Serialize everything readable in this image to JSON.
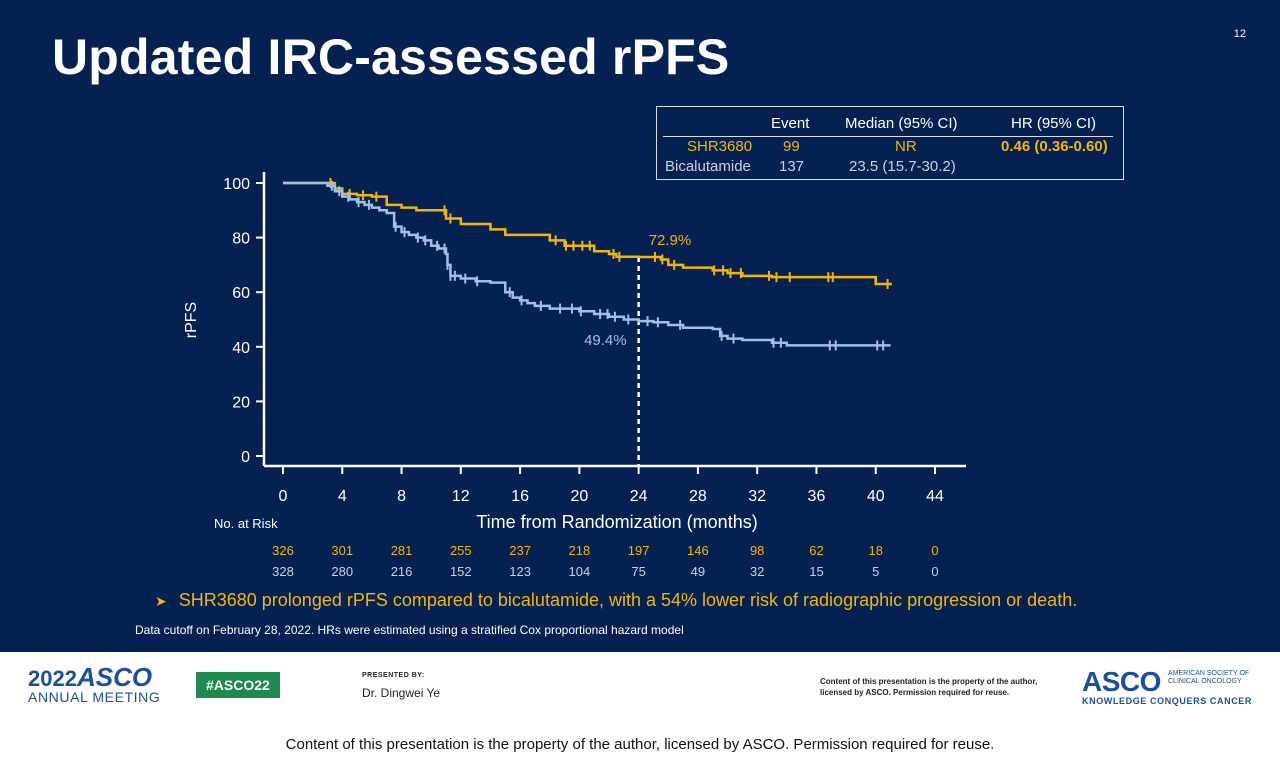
{
  "slide": {
    "number": "12",
    "title": "Updated IRC-assessed rPFS",
    "bullet": "SHR3680 prolonged rPFS compared to bicalutamide, with a 54% lower risk of radiographic progression or death.",
    "footnote": "Data cutoff on February 28, 2022. HRs were estimated using a stratified Cox proportional hazard model"
  },
  "legend_table": {
    "headers": [
      "Event",
      "Median (95% CI)",
      "HR (95% CI)"
    ],
    "rows": [
      {
        "arm": "SHR3680",
        "event": "99",
        "median": "NR",
        "hr": "0.46 (0.36-0.60)"
      },
      {
        "arm": "Bicalutamide",
        "event": "137",
        "median": "23.5 (15.7-30.2)",
        "hr": ""
      }
    ]
  },
  "colors": {
    "background": "#052152",
    "shr3680": "#f2b705",
    "bicalutamide": "#9cc2e5",
    "axis": "#ffffff"
  },
  "chart_data": {
    "type": "line",
    "subtype": "kaplan-meier",
    "xlabel": "Time from Randomization (months)",
    "ylabel": "rPFS",
    "xlim": [
      0,
      44
    ],
    "ylim": [
      0,
      100
    ],
    "x_ticks": [
      0,
      4,
      8,
      12,
      16,
      20,
      24,
      28,
      32,
      36,
      40,
      44
    ],
    "y_ticks": [
      0,
      20,
      40,
      60,
      80,
      100
    ],
    "reference_line": {
      "x": 24
    },
    "annotations": [
      {
        "label": "72.9%",
        "x": 24,
        "y": 72.9,
        "series": "SHR3680"
      },
      {
        "label": "49.4%",
        "x": 24,
        "y": 49.4,
        "series": "Bicalutamide"
      }
    ],
    "series": [
      {
        "name": "SHR3680",
        "color": "#f2b705",
        "steps": [
          [
            0,
            100
          ],
          [
            3,
            100
          ],
          [
            3.5,
            98
          ],
          [
            4,
            96
          ],
          [
            5,
            95.5
          ],
          [
            6,
            95
          ],
          [
            7,
            92
          ],
          [
            8,
            91
          ],
          [
            9,
            90
          ],
          [
            10.5,
            90
          ],
          [
            11,
            87
          ],
          [
            12,
            85
          ],
          [
            14,
            83
          ],
          [
            15,
            81
          ],
          [
            18,
            79
          ],
          [
            19,
            77
          ],
          [
            21,
            75
          ],
          [
            22,
            74
          ],
          [
            22.5,
            73
          ],
          [
            24,
            72.9
          ],
          [
            25.5,
            72
          ],
          [
            26,
            70
          ],
          [
            27,
            69
          ],
          [
            29,
            68
          ],
          [
            30,
            67
          ],
          [
            31,
            66
          ],
          [
            33,
            65.5
          ],
          [
            39,
            65.5
          ],
          [
            40,
            63
          ],
          [
            41,
            62.5
          ]
        ],
        "censor_x": [
          3.2,
          4.5,
          5.4,
          6.3,
          10.9,
          11.3,
          18.4,
          19.1,
          19.6,
          20.2,
          20.7,
          22.3,
          22.7,
          25.1,
          25.6,
          26.4,
          29.1,
          29.7,
          30.2,
          30.9,
          32.8,
          33.3,
          34.2,
          36.8,
          37.1,
          40.8
        ]
      },
      {
        "name": "Bicalutamide",
        "color": "#9cc2e5",
        "steps": [
          [
            0,
            100
          ],
          [
            3,
            99
          ],
          [
            3.5,
            97
          ],
          [
            4,
            95
          ],
          [
            4.5,
            94
          ],
          [
            5,
            93
          ],
          [
            5.5,
            92
          ],
          [
            6,
            91
          ],
          [
            6.5,
            90
          ],
          [
            7,
            89
          ],
          [
            7.5,
            84
          ],
          [
            8,
            82
          ],
          [
            8.5,
            81
          ],
          [
            9,
            80
          ],
          [
            9.5,
            79
          ],
          [
            10,
            77
          ],
          [
            10.5,
            76
          ],
          [
            11,
            74
          ],
          [
            11.1,
            70
          ],
          [
            11.3,
            66
          ],
          [
            12,
            65
          ],
          [
            13,
            64
          ],
          [
            14,
            63.5
          ],
          [
            15,
            60
          ],
          [
            15.5,
            58
          ],
          [
            16,
            57
          ],
          [
            16.5,
            56
          ],
          [
            17,
            55
          ],
          [
            18,
            54
          ],
          [
            20,
            53
          ],
          [
            21,
            52
          ],
          [
            22,
            51
          ],
          [
            23,
            50
          ],
          [
            24,
            49.4
          ],
          [
            25,
            49
          ],
          [
            26,
            48
          ],
          [
            27,
            47
          ],
          [
            29,
            46.5
          ],
          [
            29.5,
            44
          ],
          [
            30,
            43
          ],
          [
            31,
            42.5
          ],
          [
            32,
            42.5
          ],
          [
            33,
            41.5
          ],
          [
            34,
            40.5
          ],
          [
            41,
            40.5
          ]
        ],
        "censor_x": [
          3.3,
          3.8,
          4.4,
          5.1,
          5.8,
          7.6,
          8.2,
          9.1,
          9.6,
          10.4,
          10.9,
          11.1,
          11.3,
          11.6,
          12.3,
          13.1,
          15.3,
          16.1,
          17.4,
          18.7,
          19.5,
          20.1,
          21.4,
          21.9,
          22.4,
          23.3,
          24.6,
          25.3,
          26.8,
          29.6,
          30.4,
          33.1,
          33.6,
          36.9,
          37.3,
          40.1,
          40.5
        ]
      }
    ],
    "risk_table": {
      "label": "No. at Risk",
      "rows": [
        {
          "name": "SHR3680",
          "values": [
            "326",
            "301",
            "281",
            "255",
            "237",
            "218",
            "197",
            "146",
            "98",
            "62",
            "18",
            "0"
          ]
        },
        {
          "name": "Bicalutamide",
          "values": [
            "328",
            "280",
            "216",
            "152",
            "123",
            "104",
            "75",
            "49",
            "32",
            "15",
            "5",
            "0"
          ]
        }
      ]
    }
  },
  "footer": {
    "meeting_year": "2022",
    "meeting_name": "ASCO",
    "meeting_sub": "ANNUAL MEETING",
    "hashtag": "#ASCO22",
    "presented_by_label": "PRESENTED BY:",
    "presenter": "Dr. Dingwei Ye",
    "notice": "Content of this presentation is the property of the author, licensed by ASCO. Permission required for reuse.",
    "asco_logo": "ASCO",
    "asco_org": "AMERICAN SOCIETY OF CLINICAL ONCOLOGY",
    "asco_tagline": "KNOWLEDGE CONQUERS CANCER"
  },
  "bottom_notice": "Content of this presentation is the property of the author, licensed by ASCO. Permission required for reuse."
}
